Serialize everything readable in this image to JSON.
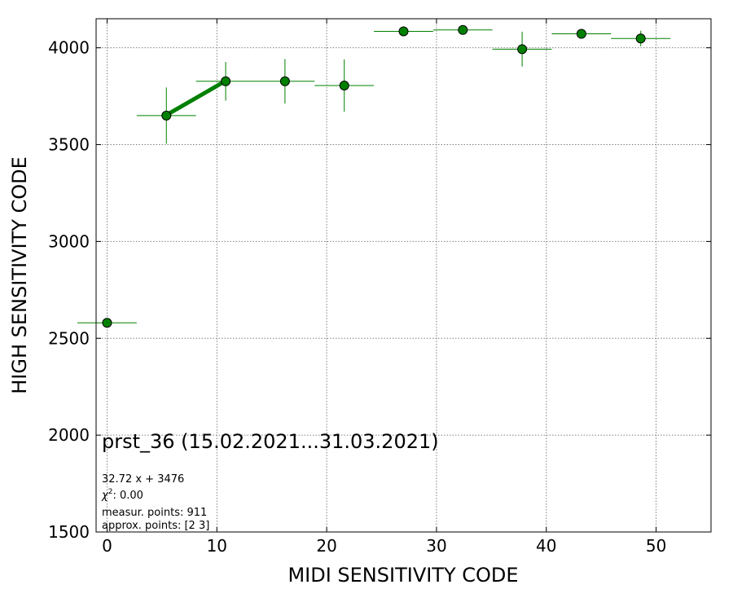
{
  "chart_data": {
    "type": "scatter",
    "xlabel": "MIDI SENSITIVITY CODE",
    "ylabel": "HIGH SENSITIVITY CODE",
    "xlim": [
      -1,
      55
    ],
    "ylim": [
      1500,
      4150
    ],
    "xticks": [
      0,
      10,
      20,
      30,
      40,
      50
    ],
    "yticks": [
      1500,
      2000,
      2500,
      3000,
      3500,
      4000
    ],
    "grid": true,
    "colors": {
      "marker": "#008000",
      "errorbar": "#008000",
      "fit": "#008000",
      "marker_edge": "#000000"
    },
    "points": [
      {
        "x": 0.0,
        "y": 2580,
        "xerr": 2.7,
        "yerr": 0
      },
      {
        "x": 5.4,
        "y": 3650,
        "xerr": 2.7,
        "yerr": 145
      },
      {
        "x": 10.8,
        "y": 3827,
        "xerr": 2.7,
        "yerr": 100
      },
      {
        "x": 16.2,
        "y": 3827,
        "xerr": 2.7,
        "yerr": 115
      },
      {
        "x": 21.6,
        "y": 3805,
        "xerr": 2.7,
        "yerr": 135
      },
      {
        "x": 27.0,
        "y": 4085,
        "xerr": 2.7,
        "yerr": 0
      },
      {
        "x": 32.4,
        "y": 4092,
        "xerr": 2.7,
        "yerr": 0
      },
      {
        "x": 37.8,
        "y": 3993,
        "xerr": 2.7,
        "yerr": 90
      },
      {
        "x": 43.2,
        "y": 4072,
        "xerr": 2.7,
        "yerr": 0
      },
      {
        "x": 48.6,
        "y": 4048,
        "xerr": 2.7,
        "yerr": 40
      }
    ],
    "fit_line": {
      "x": [
        5.4,
        10.8
      ],
      "y": [
        3652.7,
        3829.3
      ]
    },
    "annotation": {
      "title": "prst_36 (15.02.2021...31.03.2021)",
      "lines": [
        "32.72 x + 3476",
        "measur. points: 911",
        "approx. points: [2 3]"
      ],
      "chi2_label": "χ",
      "chi2_sup": "2",
      "chi2_value": ": 0.00"
    }
  }
}
